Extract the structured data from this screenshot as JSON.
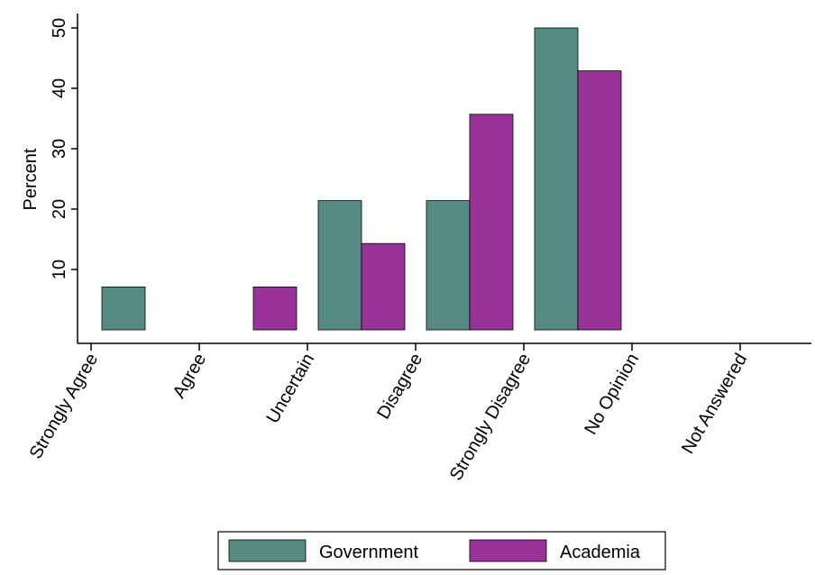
{
  "chart_data": {
    "type": "bar",
    "title": "",
    "xlabel": "",
    "ylabel": "Percent",
    "ylim": [
      0,
      52
    ],
    "yticks": [
      10,
      20,
      30,
      40,
      50
    ],
    "grid": false,
    "legend_position": "bottom",
    "categories": [
      "Strongly Agree",
      "Agree",
      "Uncertain",
      "Disagree",
      "Strongly Disagree",
      "No Opinion",
      "Not Answered"
    ],
    "series": [
      {
        "name": "Government",
        "color": "#568b83",
        "values": [
          7.1,
          0,
          21.4,
          21.4,
          50,
          0,
          0
        ]
      },
      {
        "name": "Academia",
        "color": "#993399",
        "values": [
          0,
          7.1,
          14.3,
          35.7,
          42.9,
          0,
          0
        ]
      }
    ]
  }
}
